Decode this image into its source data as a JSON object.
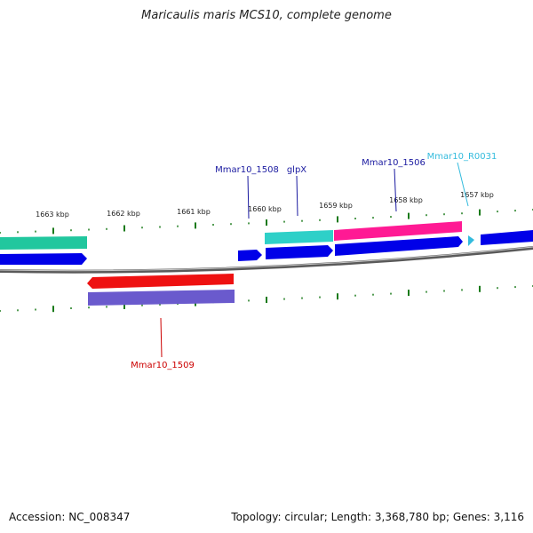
{
  "title": "Maricaulis maris MCS10, complete genome",
  "footer": {
    "accession": "Accession: NC_008347",
    "summary": "Topology: circular; Length: 3,368,780 bp; Genes: 3,116"
  },
  "colors": {
    "backbone": "#808080",
    "tick": "#1a7a1a",
    "cds": "#0000e8",
    "gene": "#2ed0c8",
    "gene_teal": "#21c79e",
    "magenta": "#ff1a94",
    "red": "#ee1111",
    "purple": "#6a5acd",
    "label_blue": "#1a1aa0",
    "label_red": "#cc0000",
    "label_cyan": "#33bbdd"
  },
  "scale_labels": [
    "1663 kbp",
    "1662 kbp",
    "1661 kbp",
    "1660 kbp",
    "1659 kbp",
    "1658 kbp",
    "1657 kbp"
  ],
  "feature_labels": {
    "mmar10_1508": "Mmar10_1508",
    "glpx": "glpX",
    "mmar10_1506": "Mmar10_1506",
    "mmar10_r0031": "Mmar10_R0031",
    "mmar10_1509": "Mmar10_1509"
  }
}
